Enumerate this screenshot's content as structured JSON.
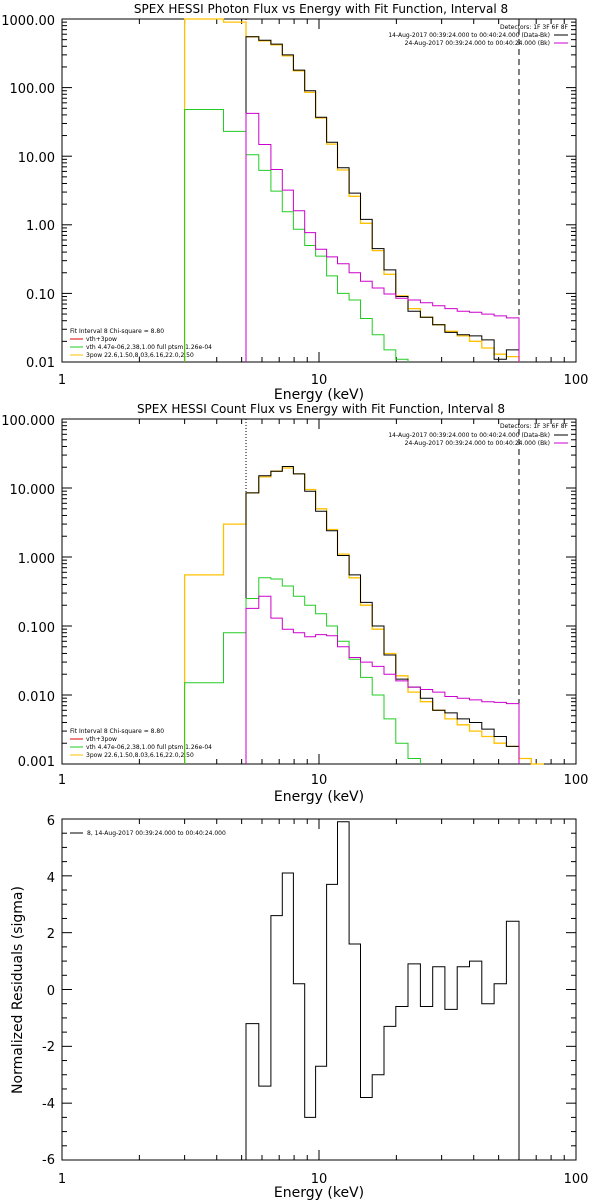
{
  "colors": {
    "data": "#000000",
    "total": "#ffc000",
    "vth": "#22cc22",
    "bkg": "#cc00cc",
    "red": "#e00000",
    "pink": "#ff33ff"
  },
  "chart_data": [
    {
      "type": "line",
      "title": "SPEX HESSI Photon Flux vs Energy with Fit Function, Interval 8",
      "xlabel": "Energy (keV)",
      "ylabel": "",
      "xscale": "log",
      "yscale": "log",
      "xlim": [
        1,
        100
      ],
      "ylim": [
        0.01,
        1000
      ],
      "xticks": [
        "1",
        "10",
        "100"
      ],
      "yticks": [
        "1000.00",
        "100.00",
        "10.00",
        "1.00",
        "0.10",
        "0.01"
      ],
      "legend_right": {
        "header": "Detectors: 1F 3F 6F 8F",
        "items": [
          {
            "text": "14-Aug-2017 00:39:24.000 to 00:40:24.000 (Data-Bk)",
            "color": "#000000"
          },
          {
            "text": "24-Aug-2017 00:39:24.000 to 00:40:24.000 (Bk)",
            "color": "#cc00cc"
          }
        ]
      },
      "legend_left": {
        "header": "Fit Interval 8   Chi-square = 8.80",
        "items": [
          {
            "text": "vth+3pow",
            "color": "#e00000"
          },
          {
            "text": "vth 4.47e-06,2.38,1.00  full ptsm 1.26e-04",
            "color": "#22cc22"
          },
          {
            "text": "3pow 22.6,1.50,8.03,6.16,22.0,2.50",
            "color": "#ffc000"
          }
        ]
      },
      "vlines": [
        {
          "x": 5.2,
          "style": "dotted"
        },
        {
          "x": 60,
          "style": "dashed"
        }
      ],
      "edges": [
        3,
        3.55,
        4.25,
        5.2,
        5.83,
        6.5,
        7.2,
        7.95,
        8.8,
        9.7,
        10.7,
        11.8,
        13.1,
        14.5,
        16.1,
        17.9,
        19.9,
        22.2,
        24.8,
        27.7,
        30.9,
        34.5,
        38.5,
        43,
        48,
        53.6,
        60
      ],
      "series": [
        {
          "key": "total",
          "color": "#ffc000",
          "width": 1.3,
          "values": [
            1000,
            1000,
            900,
            550,
            480,
            420,
            290,
            175,
            85,
            36,
            15,
            6.3,
            2.6,
            1.05,
            0.42,
            0.19,
            0.092,
            0.06,
            0.045,
            0.035,
            0.028,
            0.024,
            0.02,
            0.016,
            0.013,
            0.012
          ]
        },
        {
          "key": "data",
          "color": "#000000",
          "width": 1,
          "values": [
            null,
            null,
            null,
            550,
            490,
            430,
            300,
            180,
            90,
            37,
            16,
            6.8,
            2.9,
            1.2,
            0.45,
            0.22,
            0.09,
            0.055,
            0.045,
            0.035,
            0.027,
            0.025,
            0.024,
            0.021,
            0.011,
            0.015
          ]
        },
        {
          "key": "vth",
          "color": "#22cc22",
          "width": 1,
          "values": [
            48,
            48,
            23,
            10.5,
            6.2,
            3.1,
            1.55,
            0.86,
            0.5,
            0.35,
            0.18,
            0.1,
            0.08,
            0.043,
            0.025,
            0.015,
            0.011,
            null,
            null,
            null,
            null,
            null,
            null,
            null,
            null,
            null
          ]
        },
        {
          "key": "bkg",
          "color": "#cc00cc",
          "width": 1,
          "values": [
            null,
            null,
            null,
            42,
            14.8,
            6.4,
            3.2,
            1.6,
            0.77,
            0.44,
            0.34,
            0.27,
            0.2,
            0.15,
            0.12,
            0.098,
            0.085,
            0.08,
            0.073,
            0.066,
            0.06,
            0.055,
            0.053,
            0.05,
            0.047,
            0.044
          ]
        }
      ]
    },
    {
      "type": "line",
      "title": "SPEX HESSI Count Flux vs Energy with Fit Function, Interval 8",
      "xlabel": "Energy (keV)",
      "ylabel": "",
      "xscale": "log",
      "yscale": "log",
      "xlim": [
        1,
        100
      ],
      "ylim": [
        0.001,
        100
      ],
      "xticks": [
        "1",
        "10",
        "100"
      ],
      "yticks": [
        "100.000",
        "10.000",
        "1.000",
        "0.100",
        "0.010",
        "0.001"
      ],
      "legend_right": {
        "header": "Detectors: 1F 3F 6F 8F",
        "items": [
          {
            "text": "14-Aug-2017 00:39:24.000 to 00:40:24.000 (Data-Bk)",
            "color": "#000000"
          },
          {
            "text": "24-Aug-2017 00:39:24.000 to 00:40:24.000 (Bk)",
            "color": "#cc00cc"
          }
        ]
      },
      "legend_left": {
        "header": "Fit Interval 8   Chi-square = 8.80",
        "items": [
          {
            "text": "vth+3pow",
            "color": "#e00000"
          },
          {
            "text": "vth 4.47e-06,2.38,1.00  full ptsm 1.26e-04",
            "color": "#22cc22"
          },
          {
            "text": "3pow 22.6,1.50,8.03,6.16,22.0,2.50",
            "color": "#ffc000"
          }
        ]
      },
      "vlines": [
        {
          "x": 5.2,
          "style": "dotted"
        },
        {
          "x": 60,
          "style": "dashed"
        }
      ],
      "edges": [
        3,
        3.55,
        4.25,
        5.2,
        5.83,
        6.5,
        7.2,
        7.95,
        8.8,
        9.7,
        10.7,
        11.8,
        13.1,
        14.5,
        16.1,
        17.9,
        19.9,
        22.2,
        24.8,
        27.7,
        30.9,
        34.5,
        38.5,
        43,
        48,
        53.6,
        60,
        67,
        75
      ],
      "series": [
        {
          "key": "total",
          "color": "#ffc000",
          "width": 1.3,
          "values": [
            0.55,
            0.55,
            3.0,
            8.5,
            14.5,
            17.5,
            19.5,
            16,
            9.5,
            5.0,
            2.5,
            1.1,
            0.5,
            0.2,
            0.09,
            0.04,
            0.019,
            0.011,
            0.008,
            0.006,
            0.0045,
            0.0037,
            0.003,
            0.0025,
            0.002,
            0.0018,
            0.0012,
            0.001
          ]
        },
        {
          "key": "data",
          "color": "#000000",
          "width": 1,
          "values": [
            null,
            null,
            null,
            8.5,
            15,
            17.5,
            20.5,
            16,
            9,
            4.6,
            2.4,
            1.05,
            0.55,
            0.22,
            0.1,
            0.038,
            0.017,
            0.013,
            0.009,
            0.006,
            0.0055,
            0.0045,
            0.004,
            0.0032,
            0.0025,
            0.0018,
            null,
            null
          ]
        },
        {
          "key": "vth",
          "color": "#22cc22",
          "width": 1,
          "values": [
            0.015,
            0.015,
            0.08,
            0.25,
            0.5,
            0.48,
            0.38,
            0.27,
            0.2,
            0.15,
            0.1,
            0.06,
            0.033,
            0.018,
            0.01,
            0.0045,
            0.002,
            0.0012,
            null,
            null,
            null,
            null,
            null,
            null,
            null,
            null,
            null,
            null
          ]
        },
        {
          "key": "bkg",
          "color": "#cc00cc",
          "width": 1,
          "values": [
            null,
            null,
            null,
            0.18,
            0.27,
            0.13,
            0.09,
            0.08,
            0.07,
            0.075,
            0.072,
            0.05,
            0.035,
            0.03,
            0.026,
            0.02,
            0.016,
            0.013,
            0.012,
            0.011,
            0.0095,
            0.009,
            0.0085,
            0.008,
            0.0078,
            0.0075,
            null,
            null
          ]
        }
      ]
    },
    {
      "type": "line",
      "title": "",
      "xlabel": "Energy (keV)",
      "ylabel": "Normalized Residuals (sigma)",
      "xscale": "log",
      "yscale": "linear",
      "xlim": [
        1,
        100
      ],
      "ylim": [
        -6,
        6
      ],
      "xticks": [
        "1",
        "10",
        "100"
      ],
      "yticks": [
        "6",
        "4",
        "2",
        "0",
        "-2",
        "-4",
        "-6"
      ],
      "legend_text": "8, 14-Aug-2017 00:39:24.000 to 00:40:24.000",
      "edges": [
        5.2,
        5.83,
        6.5,
        7.2,
        7.95,
        8.8,
        9.7,
        10.7,
        11.8,
        13.1,
        14.5,
        16.1,
        17.9,
        19.9,
        22.2,
        24.8,
        27.7,
        30.9,
        34.5,
        38.5,
        43,
        48,
        53.6,
        60
      ],
      "series": [
        {
          "key": "residuals",
          "color": "#000000",
          "width": 1,
          "values": [
            -1.2,
            -3.4,
            2.6,
            4.1,
            0.2,
            -4.5,
            -2.7,
            3.7,
            5.9,
            1.6,
            -3.8,
            -3.0,
            -1.3,
            -0.6,
            0.9,
            -0.6,
            0.8,
            -0.7,
            0.8,
            1.0,
            -0.5,
            0.2,
            2.4
          ]
        }
      ]
    }
  ]
}
